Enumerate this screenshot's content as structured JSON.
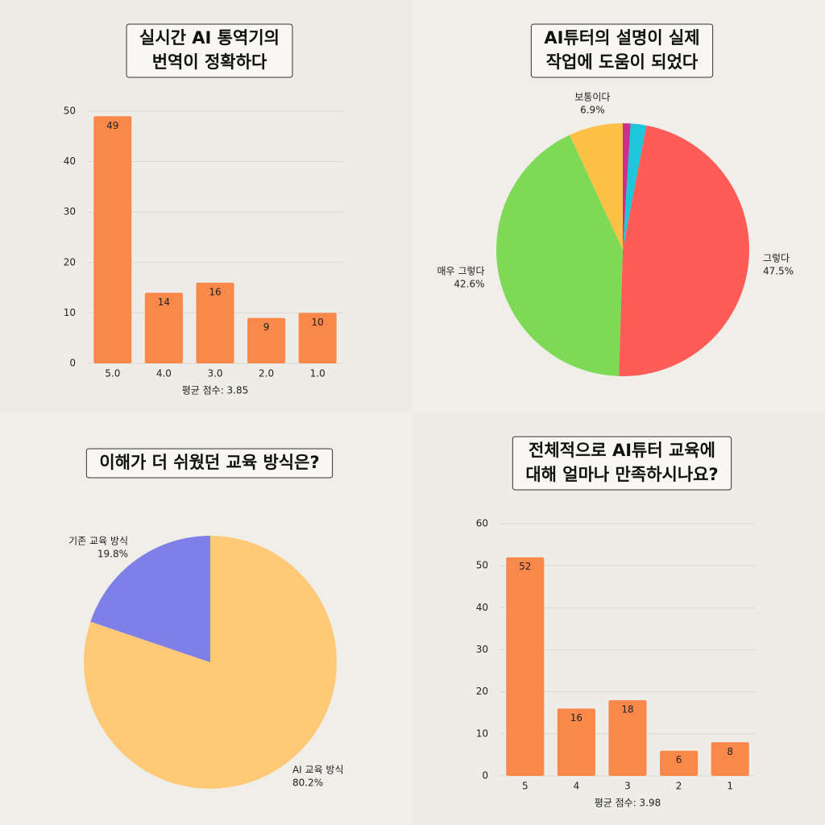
{
  "chart_data": [
    {
      "type": "bar",
      "title": [
        "실시간 AI 통역기의",
        "번역이 정확하다"
      ],
      "categories": [
        "5.0",
        "4.0",
        "3.0",
        "2.0",
        "1.0"
      ],
      "values": [
        49,
        14,
        16,
        9,
        10
      ],
      "color": "#fa884a",
      "ylim": [
        0,
        50
      ],
      "yticks": [
        0,
        10,
        20,
        30,
        40,
        50
      ],
      "grid": true,
      "note": "평균 점수: 3.85"
    },
    {
      "type": "pie",
      "title": [
        "AI튜터의 설명이 실제",
        "작업에 도움이 되었다"
      ],
      "categories": [
        null,
        null,
        "그렇다",
        "매우 그렇다",
        "보통이다"
      ],
      "values": [
        1.0,
        2.0,
        47.5,
        42.6,
        6.9
      ],
      "value_labels": [
        null,
        null,
        "47.5%",
        "42.6%",
        "6.9%"
      ],
      "colors": [
        "#c6338f",
        "#1ec6da",
        "#ff5b57",
        "#7ed957",
        "#ffc145"
      ]
    },
    {
      "type": "pie",
      "title": [
        "이해가 더 쉬웠던 교육 방식은?"
      ],
      "categories": [
        "AI 교육 방식",
        "기존 교육 방식"
      ],
      "values": [
        80.2,
        19.8
      ],
      "value_labels": [
        "80.2%",
        "19.8%"
      ],
      "colors": [
        "#ffc977",
        "#7f7fe8"
      ]
    },
    {
      "type": "bar",
      "title": [
        "전체적으로 AI튜터 교육에",
        "대해 얼마나 만족하시나요?"
      ],
      "categories": [
        "5",
        "4",
        "3",
        "2",
        "1"
      ],
      "values": [
        52,
        16,
        18,
        6,
        8
      ],
      "color": "#fa884a",
      "ylim": [
        0,
        60
      ],
      "yticks": [
        0,
        10,
        20,
        30,
        40,
        50,
        60
      ],
      "grid": true,
      "note": "평균 점수: 3.98"
    }
  ]
}
